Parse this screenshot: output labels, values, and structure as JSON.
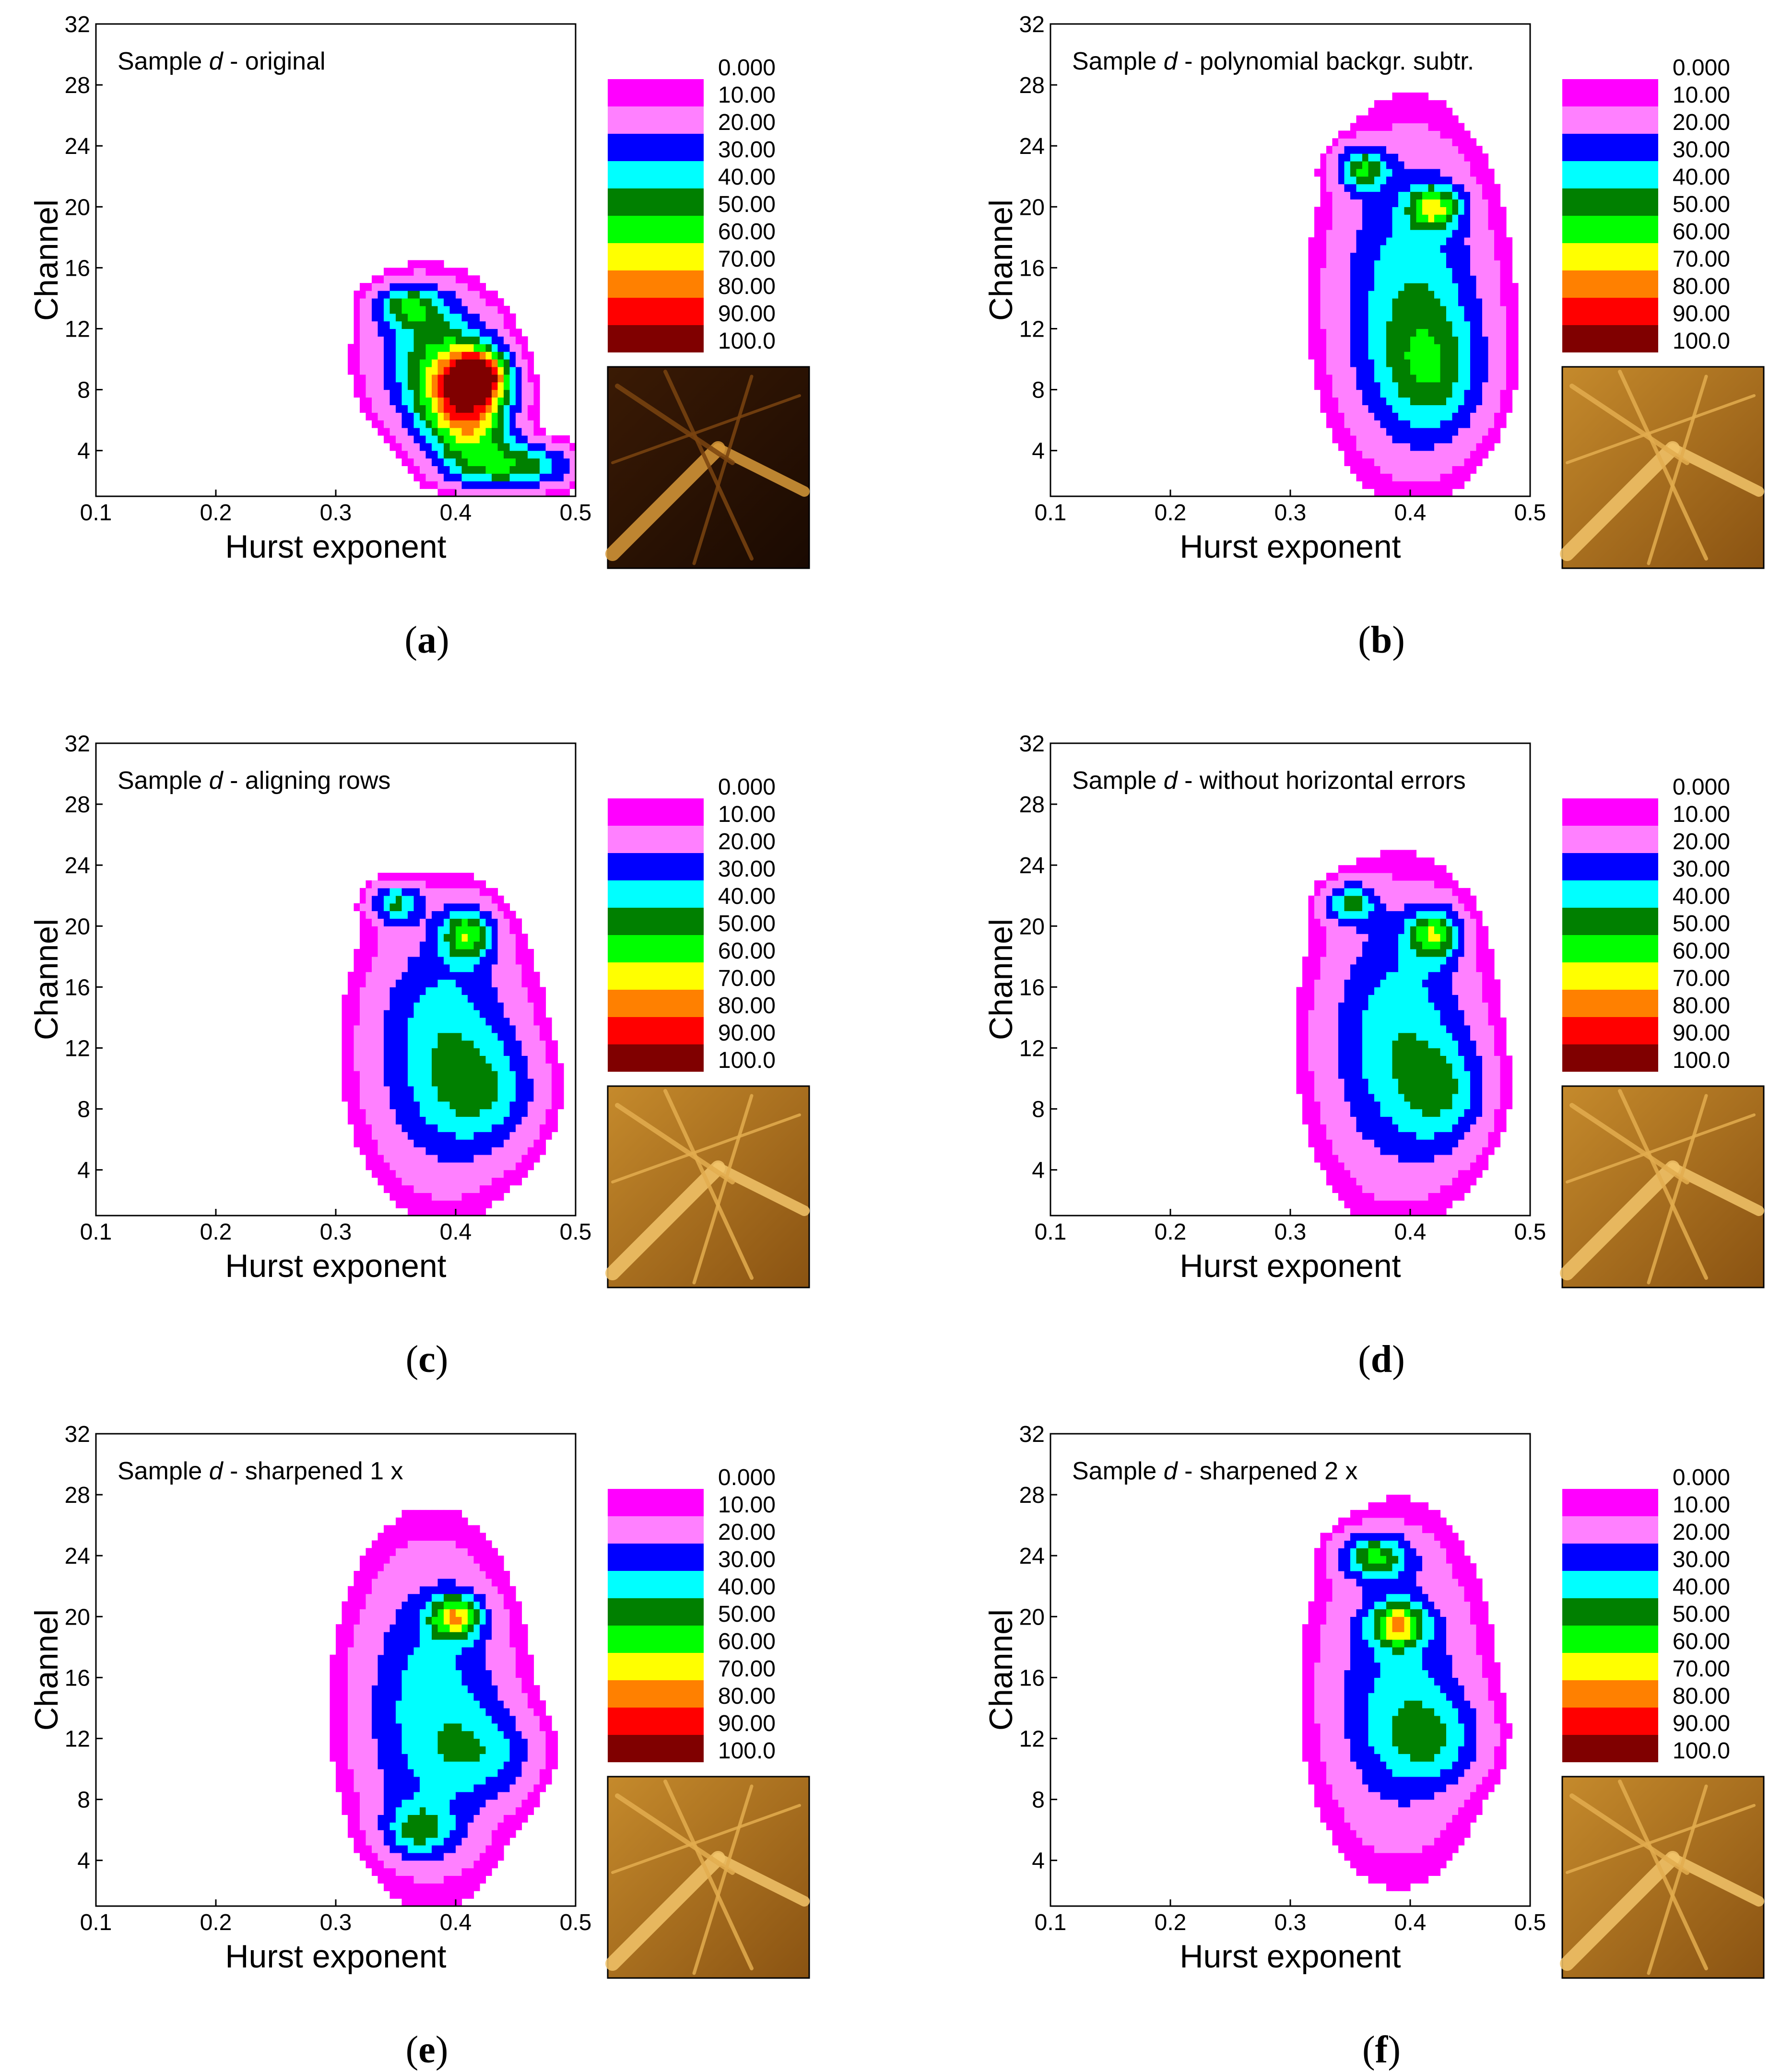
{
  "chart_data": [
    {
      "type": "heatmap",
      "panel_label": "a",
      "title_prefix": "Sample ",
      "title_var": "d",
      "title_suffix": " - original",
      "xlabel": "Hurst exponent",
      "ylabel": "Channel",
      "xlim": [
        0.1,
        0.5
      ],
      "ylim": [
        1,
        32
      ],
      "xticks": [
        "0.1",
        "0.2",
        "0.3",
        "0.4",
        "0.5"
      ],
      "yticks": [
        "4",
        "8",
        "12",
        "16",
        "20",
        "24",
        "28",
        "32"
      ],
      "xtick_values": [
        0.1,
        0.2,
        0.3,
        0.4,
        0.5
      ],
      "ytick_values": [
        4,
        8,
        12,
        16,
        20,
        24,
        28,
        32
      ],
      "legend_labels": [
        "0.000",
        "10.00",
        "20.00",
        "30.00",
        "40.00",
        "50.00",
        "60.00",
        "70.00",
        "80.00",
        "90.00",
        "100.0"
      ],
      "legend_colors": [
        "#ff00ff",
        "#ff80ff",
        "#0000ff",
        "#00ffff",
        "#008000",
        "#00ff00",
        "#ffff00",
        "#ff8000",
        "#ff0000",
        "#800000"
      ],
      "image_tone": "dark",
      "blobs": [
        {
          "x": 0.38,
          "y": 10,
          "sx": 0.035,
          "sy": 3.2,
          "a": 40
        },
        {
          "x": 0.41,
          "y": 7,
          "sx": 0.025,
          "sy": 2.5,
          "a": 75
        },
        {
          "x": 0.45,
          "y": 3,
          "sx": 0.035,
          "sy": 1.1,
          "a": 45
        },
        {
          "x": 0.36,
          "y": 13.5,
          "sx": 0.02,
          "sy": 1.0,
          "a": 35
        },
        {
          "x": 0.42,
          "y": 9,
          "sx": 0.015,
          "sy": 1.0,
          "a": 60
        }
      ]
    },
    {
      "type": "heatmap",
      "panel_label": "b",
      "title_prefix": "Sample ",
      "title_var": "d",
      "title_suffix": " - polynomial backgr. subtr.",
      "xlabel": "Hurst exponent",
      "ylabel": "Channel",
      "xlim": [
        0.1,
        0.5
      ],
      "ylim": [
        1,
        32
      ],
      "xticks": [
        "0.1",
        "0.2",
        "0.3",
        "0.4",
        "0.5"
      ],
      "yticks": [
        "4",
        "8",
        "12",
        "16",
        "20",
        "24",
        "28",
        "32"
      ],
      "xtick_values": [
        0.1,
        0.2,
        0.3,
        0.4,
        0.5
      ],
      "ytick_values": [
        4,
        8,
        12,
        16,
        20,
        24,
        28,
        32
      ],
      "legend_labels": [
        "0.000",
        "10.00",
        "20.00",
        "30.00",
        "40.00",
        "50.00",
        "60.00",
        "70.00",
        "80.00",
        "90.00",
        "100.0"
      ],
      "legend_colors": [
        "#ff00ff",
        "#ff80ff",
        "#0000ff",
        "#00ffff",
        "#008000",
        "#00ff00",
        "#ffff00",
        "#ff8000",
        "#ff0000",
        "#800000"
      ],
      "image_tone": "medium",
      "blobs": [
        {
          "x": 0.4,
          "y": 14,
          "sx": 0.045,
          "sy": 7.0,
          "a": 38
        },
        {
          "x": 0.42,
          "y": 9,
          "sx": 0.03,
          "sy": 3.0,
          "a": 25
        },
        {
          "x": 0.36,
          "y": 22.5,
          "sx": 0.015,
          "sy": 1.0,
          "a": 40
        },
        {
          "x": 0.42,
          "y": 20,
          "sx": 0.015,
          "sy": 1.0,
          "a": 45
        }
      ]
    },
    {
      "type": "heatmap",
      "panel_label": "c",
      "title_prefix": "Sample ",
      "title_var": "d",
      "title_suffix": " - aligning rows",
      "xlabel": "Hurst exponent",
      "ylabel": "Channel",
      "xlim": [
        0.1,
        0.5
      ],
      "ylim": [
        1,
        32
      ],
      "xticks": [
        "0.1",
        "0.2",
        "0.3",
        "0.4",
        "0.5"
      ],
      "yticks": [
        "4",
        "8",
        "12",
        "16",
        "20",
        "24",
        "28",
        "32"
      ],
      "xtick_values": [
        0.1,
        0.2,
        0.3,
        0.4,
        0.5
      ],
      "ytick_values": [
        4,
        8,
        12,
        16,
        20,
        24,
        28,
        32
      ],
      "legend_labels": [
        "0.000",
        "10.00",
        "20.00",
        "30.00",
        "40.00",
        "50.00",
        "60.00",
        "70.00",
        "80.00",
        "90.00",
        "100.0"
      ],
      "legend_colors": [
        "#ff00ff",
        "#ff80ff",
        "#0000ff",
        "#00ffff",
        "#008000",
        "#00ff00",
        "#ffff00",
        "#ff8000",
        "#ff0000",
        "#800000"
      ],
      "image_tone": "medium",
      "blobs": [
        {
          "x": 0.39,
          "y": 12,
          "sx": 0.045,
          "sy": 6.0,
          "a": 38
        },
        {
          "x": 0.43,
          "y": 9,
          "sx": 0.03,
          "sy": 2.5,
          "a": 20
        },
        {
          "x": 0.35,
          "y": 21.5,
          "sx": 0.015,
          "sy": 0.9,
          "a": 35
        },
        {
          "x": 0.41,
          "y": 19.5,
          "sx": 0.015,
          "sy": 1.2,
          "a": 45
        }
      ]
    },
    {
      "type": "heatmap",
      "panel_label": "d",
      "title_prefix": "Sample ",
      "title_var": "d",
      "title_suffix": " - without horizontal errors",
      "xlabel": "Hurst exponent",
      "ylabel": "Channel",
      "xlim": [
        0.1,
        0.5
      ],
      "ylim": [
        1,
        32
      ],
      "xticks": [
        "0.1",
        "0.2",
        "0.3",
        "0.4",
        "0.5"
      ],
      "yticks": [
        "4",
        "8",
        "12",
        "16",
        "20",
        "24",
        "28",
        "32"
      ],
      "xtick_values": [
        0.1,
        0.2,
        0.3,
        0.4,
        0.5
      ],
      "ytick_values": [
        4,
        8,
        12,
        16,
        20,
        24,
        28,
        32
      ],
      "legend_labels": [
        "0.000",
        "10.00",
        "20.00",
        "30.00",
        "40.00",
        "50.00",
        "60.00",
        "70.00",
        "80.00",
        "90.00",
        "100.0"
      ],
      "legend_colors": [
        "#ff00ff",
        "#ff80ff",
        "#0000ff",
        "#00ffff",
        "#008000",
        "#00ff00",
        "#ffff00",
        "#ff8000",
        "#ff0000",
        "#800000"
      ],
      "image_tone": "medium",
      "blobs": [
        {
          "x": 0.39,
          "y": 12.5,
          "sx": 0.045,
          "sy": 6.5,
          "a": 38
        },
        {
          "x": 0.43,
          "y": 9,
          "sx": 0.025,
          "sy": 2.5,
          "a": 22
        },
        {
          "x": 0.35,
          "y": 21.5,
          "sx": 0.015,
          "sy": 0.9,
          "a": 35
        },
        {
          "x": 0.42,
          "y": 19.5,
          "sx": 0.015,
          "sy": 1.2,
          "a": 45
        }
      ]
    },
    {
      "type": "heatmap",
      "panel_label": "e",
      "title_prefix": "Sample ",
      "title_var": "d",
      "title_suffix": " - sharpened 1 x",
      "xlabel": "Hurst exponent",
      "ylabel": "Channel",
      "xlim": [
        0.1,
        0.5
      ],
      "ylim": [
        1,
        32
      ],
      "xticks": [
        "0.1",
        "0.2",
        "0.3",
        "0.4",
        "0.5"
      ],
      "yticks": [
        "4",
        "8",
        "12",
        "16",
        "20",
        "24",
        "28",
        "32"
      ],
      "xtick_values": [
        0.1,
        0.2,
        0.3,
        0.4,
        0.5
      ],
      "ytick_values": [
        4,
        8,
        12,
        16,
        20,
        24,
        28,
        32
      ],
      "legend_labels": [
        "0.000",
        "10.00",
        "20.00",
        "30.00",
        "40.00",
        "50.00",
        "60.00",
        "70.00",
        "80.00",
        "90.00",
        "100.0"
      ],
      "legend_colors": [
        "#ff00ff",
        "#ff80ff",
        "#0000ff",
        "#00ffff",
        "#008000",
        "#00ff00",
        "#ffff00",
        "#ff8000",
        "#ff0000",
        "#800000"
      ],
      "image_tone": "medium",
      "blobs": [
        {
          "x": 0.38,
          "y": 14,
          "sx": 0.045,
          "sy": 7.0,
          "a": 36
        },
        {
          "x": 0.43,
          "y": 11,
          "sx": 0.03,
          "sy": 2.0,
          "a": 20
        },
        {
          "x": 0.37,
          "y": 6,
          "sx": 0.02,
          "sy": 1.2,
          "a": 30
        },
        {
          "x": 0.4,
          "y": 20,
          "sx": 0.015,
          "sy": 1.0,
          "a": 50
        }
      ]
    },
    {
      "type": "heatmap",
      "panel_label": "f",
      "title_prefix": "Sample ",
      "title_var": "d",
      "title_suffix": " - sharpened 2 x",
      "xlabel": "Hurst exponent",
      "ylabel": "Channel",
      "xlim": [
        0.1,
        0.5
      ],
      "ylim": [
        1,
        32
      ],
      "xticks": [
        "0.1",
        "0.2",
        "0.3",
        "0.4",
        "0.5"
      ],
      "yticks": [
        "4",
        "8",
        "12",
        "16",
        "20",
        "24",
        "28",
        "32"
      ],
      "xtick_values": [
        0.1,
        0.2,
        0.3,
        0.4,
        0.5
      ],
      "ytick_values": [
        4,
        8,
        12,
        16,
        20,
        24,
        28,
        32
      ],
      "legend_labels": [
        "0.000",
        "10.00",
        "20.00",
        "30.00",
        "40.00",
        "50.00",
        "60.00",
        "70.00",
        "80.00",
        "90.00",
        "100.0"
      ],
      "legend_colors": [
        "#ff00ff",
        "#ff80ff",
        "#0000ff",
        "#00ffff",
        "#008000",
        "#00ff00",
        "#ffff00",
        "#ff8000",
        "#ff0000",
        "#800000"
      ],
      "image_tone": "medium",
      "blobs": [
        {
          "x": 0.39,
          "y": 15,
          "sx": 0.045,
          "sy": 7.0,
          "a": 32
        },
        {
          "x": 0.42,
          "y": 12,
          "sx": 0.03,
          "sy": 2.0,
          "a": 22
        },
        {
          "x": 0.37,
          "y": 24,
          "sx": 0.02,
          "sy": 1.0,
          "a": 40
        },
        {
          "x": 0.39,
          "y": 19.5,
          "sx": 0.015,
          "sy": 1.0,
          "a": 50
        }
      ]
    }
  ]
}
